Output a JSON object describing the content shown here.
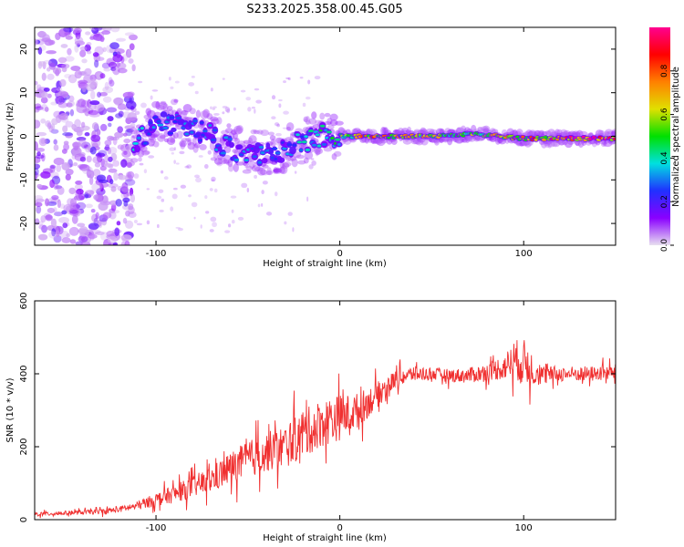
{
  "title": "S233.2025.358.00.45.G05",
  "chart_data": [
    {
      "type": "heatmap",
      "title": "S233.2025.358.00.45.G05",
      "xlabel": "Height of straight line (km)",
      "ylabel": "Frequency (Hz)",
      "xlim": [
        -166,
        150
      ],
      "ylim": [
        -25,
        25
      ],
      "xticks": [
        -100,
        0,
        100
      ],
      "yticks": [
        -20,
        -10,
        0,
        10,
        20
      ],
      "xtick_labels": [
        "-100",
        "0",
        "100"
      ],
      "ytick_labels": [
        "-20",
        "-10",
        "0",
        "10",
        "20"
      ],
      "colorbar": {
        "label": "Normalized spectral amplitude",
        "range": [
          0,
          1
        ],
        "ticks": [
          0.0,
          0.2,
          0.4,
          0.6,
          0.8
        ],
        "tick_labels": [
          "0.0",
          "0.2",
          "0.4",
          "0.6",
          "0.8"
        ],
        "colormap": [
          "#e8e0f0",
          "#8a00ff",
          "#2030ff",
          "#00e0e0",
          "#00e000",
          "#e0e000",
          "#ff8000",
          "#ff0000",
          "#ff0090"
        ]
      },
      "ridge": [
        {
          "x": -110,
          "f": -1.5,
          "amp": 0.35
        },
        {
          "x": -100,
          "f": 2.5,
          "amp": 0.3
        },
        {
          "x": -90,
          "f": 3.5,
          "amp": 0.28
        },
        {
          "x": -80,
          "f": 2.0,
          "amp": 0.3
        },
        {
          "x": -70,
          "f": 0.0,
          "amp": 0.32
        },
        {
          "x": -60,
          "f": -2.5,
          "amp": 0.3
        },
        {
          "x": -50,
          "f": -4.0,
          "amp": 0.3
        },
        {
          "x": -40,
          "f": -3.5,
          "amp": 0.3
        },
        {
          "x": -30,
          "f": -3.0,
          "amp": 0.33
        },
        {
          "x": -20,
          "f": -1.0,
          "amp": 0.38
        },
        {
          "x": -10,
          "f": 0.5,
          "amp": 0.45
        },
        {
          "x": 0,
          "f": 0.0,
          "amp": 0.55
        },
        {
          "x": 10,
          "f": 0.0,
          "amp": 0.72
        },
        {
          "x": 25,
          "f": 0.0,
          "amp": 0.8
        },
        {
          "x": 50,
          "f": 0.0,
          "amp": 0.62
        },
        {
          "x": 75,
          "f": 0.5,
          "amp": 0.58
        },
        {
          "x": 100,
          "f": -0.5,
          "amp": 0.75
        },
        {
          "x": 125,
          "f": -0.5,
          "amp": 0.9
        },
        {
          "x": 150,
          "f": -0.5,
          "amp": 0.88
        }
      ],
      "noise_region": {
        "x_range": [
          -166,
          -112
        ],
        "f_range": [
          -25,
          25
        ],
        "amp": 0.05
      }
    },
    {
      "type": "line",
      "xlabel": "Height of straight line (km)",
      "ylabel": "SNR (10 * v/v)",
      "xlim": [
        -166,
        150
      ],
      "ylim": [
        0,
        600
      ],
      "xticks": [
        -100,
        0,
        100
      ],
      "yticks": [
        0,
        200,
        400,
        600
      ],
      "xtick_labels": [
        "-100",
        "0",
        "100"
      ],
      "ytick_labels": [
        "0",
        "200",
        "400",
        "600"
      ],
      "color": "#f03030",
      "series": [
        {
          "name": "SNR",
          "x": [
            -166,
            -150,
            -140,
            -130,
            -120,
            -110,
            -100,
            -90,
            -80,
            -70,
            -60,
            -50,
            -40,
            -30,
            -20,
            -10,
            0,
            5,
            10,
            20,
            30,
            40,
            50,
            60,
            70,
            80,
            90,
            95,
            100,
            110,
            120,
            130,
            140,
            150
          ],
          "values": [
            15,
            18,
            20,
            22,
            28,
            38,
            55,
            70,
            90,
            110,
            140,
            165,
            185,
            200,
            235,
            265,
            280,
            290,
            300,
            340,
            385,
            400,
            400,
            395,
            395,
            405,
            420,
            440,
            430,
            395,
            400,
            400,
            400,
            405
          ],
          "spread": [
            10,
            10,
            10,
            12,
            14,
            20,
            30,
            40,
            50,
            60,
            75,
            85,
            90,
            100,
            110,
            110,
            105,
            90,
            80,
            60,
            40,
            35,
            30,
            30,
            35,
            40,
            60,
            90,
            110,
            45,
            35,
            35,
            35,
            35
          ]
        }
      ]
    }
  ]
}
